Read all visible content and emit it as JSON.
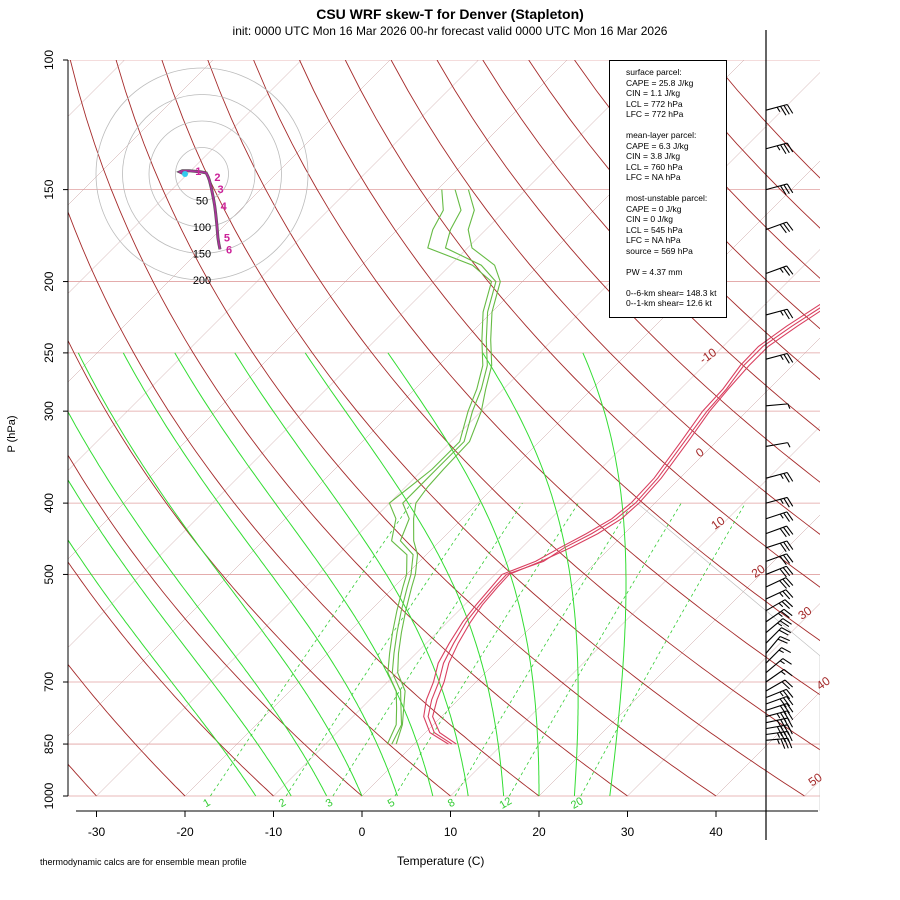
{
  "header": {
    "title": "CSU WRF skew-T for Denver (Stapleton)",
    "subtitle": "init: 0000 UTC Mon 16 Mar 2026    00-hr forecast valid 0000 UTC Mon 16 Mar 2026"
  },
  "axes": {
    "xlabel": "Temperature (C)",
    "ylabel": "P (hPa)",
    "footnote": "thermodynamic calcs are for ensemble mean profile"
  },
  "stats": {
    "surface": [
      "surface parcel:",
      "CAPE = 25.8 J/kg",
      "CIN = 1.1 J/kg",
      "LCL = 772 hPa",
      "LFC = 772 hPa"
    ],
    "mean_layer": [
      "mean-layer parcel:",
      "CAPE = 6.3 J/kg",
      "CIN = 3.8 J/kg",
      "LCL = 760 hPa",
      "LFC = NA hPa"
    ],
    "most_unstable": [
      "most-unstable parcel:",
      "CAPE = 0 J/kg",
      "CIN = 0 J/kg",
      "LCL = 545 hPa",
      "LFC = NA hPa",
      "source = 569 hPa"
    ],
    "pw": "PW =  4.37 mm",
    "shear": [
      "0--6-km shear= 148.3 kt",
      "0--1-km shear= 12.6 kt"
    ]
  },
  "colors": {
    "isotherm": "#a52a2a",
    "dry_adiabat": "#a52a2a",
    "moist_adiabat": "#33dd33",
    "mixing_ratio": "#33cc33",
    "isobar": "#e0a0a0",
    "temperature": "#d94060",
    "dewpoint": "#66bb44",
    "wind_barb": "#000000"
  },
  "chart_data": {
    "type": "line",
    "title": "CSU WRF skew-T for Denver (Stapleton)",
    "xlabel": "Temperature (C)",
    "ylabel": "P (hPa)",
    "x_ticks": [
      -30,
      -20,
      -10,
      0,
      10,
      20,
      30,
      40
    ],
    "y_ticks": [
      100,
      150,
      200,
      250,
      300,
      400,
      500,
      700,
      850,
      1000
    ],
    "y_scale": "log",
    "ylim": [
      1000,
      100
    ],
    "xlim": [
      -33,
      52
    ],
    "isotherm_labels": [
      {
        "text": "-10",
        "p": 255,
        "t": -10
      },
      {
        "text": "0",
        "p": 345,
        "t": 0
      },
      {
        "text": "10",
        "p": 430,
        "t": 10
      },
      {
        "text": "20",
        "p": 500,
        "t": 20
      },
      {
        "text": "30",
        "p": 570,
        "t": 30
      },
      {
        "text": "40",
        "p": 710,
        "t": 40
      },
      {
        "text": "50",
        "p": 960,
        "t": 50
      }
    ],
    "mixing_ratio_labels": [
      "1",
      "2",
      "3",
      "5",
      "8",
      "12",
      "20"
    ],
    "mixing_ratio_values": [
      1,
      2,
      3,
      5,
      8,
      12,
      20
    ],
    "series": [
      {
        "kind": "temperature",
        "members": [
          [
            [
              850,
              4.3
            ],
            [
              820,
              1.0
            ],
            [
              780,
              -1.5
            ],
            [
              740,
              -3.0
            ],
            [
              700,
              -4.2
            ],
            [
              660,
              -5.8
            ],
            [
              620,
              -6.9
            ],
            [
              580,
              -7.9
            ],
            [
              550,
              -8.3
            ],
            [
              520,
              -8.6
            ],
            [
              500,
              -8.7
            ],
            [
              480,
              -6.0
            ],
            [
              460,
              -5.2
            ],
            [
              440,
              -3.7
            ],
            [
              420,
              -2.6
            ],
            [
              400,
              -2.2
            ],
            [
              370,
              -2.5
            ],
            [
              330,
              -3.6
            ],
            [
              300,
              -4.5
            ],
            [
              280,
              -4.8
            ],
            [
              260,
              -5.5
            ],
            [
              245,
              -5.5
            ],
            [
              230,
              -4.5
            ],
            [
              200,
              -1.8
            ],
            [
              180,
              0.9
            ],
            [
              160,
              3.3
            ],
            [
              150,
              4.0
            ],
            [
              140,
              4.7
            ],
            [
              125,
              6.0
            ],
            [
              115,
              7.5
            ]
          ],
          [
            [
              850,
              4.8
            ],
            [
              820,
              1.6
            ],
            [
              780,
              -1.0
            ],
            [
              740,
              -2.4
            ],
            [
              700,
              -3.6
            ],
            [
              660,
              -5.2
            ],
            [
              620,
              -6.4
            ],
            [
              580,
              -7.4
            ],
            [
              550,
              -8.0
            ],
            [
              520,
              -8.3
            ],
            [
              500,
              -8.4
            ],
            [
              480,
              -6.3
            ],
            [
              460,
              -4.5
            ],
            [
              440,
              -3.0
            ],
            [
              420,
              -2.0
            ],
            [
              400,
              -1.8
            ],
            [
              370,
              -2.1
            ],
            [
              330,
              -3.2
            ],
            [
              300,
              -4.2
            ],
            [
              280,
              -4.6
            ],
            [
              260,
              -4.9
            ],
            [
              245,
              -4.9
            ],
            [
              230,
              -3.9
            ],
            [
              200,
              -1.3
            ],
            [
              180,
              1.4
            ],
            [
              160,
              3.8
            ],
            [
              150,
              4.4
            ],
            [
              140,
              5.1
            ],
            [
              125,
              6.3
            ],
            [
              115,
              7.7
            ]
          ],
          [
            [
              850,
              3.9
            ],
            [
              820,
              0.5
            ],
            [
              780,
              -2.0
            ],
            [
              740,
              -3.6
            ],
            [
              700,
              -4.8
            ],
            [
              660,
              -6.4
            ],
            [
              620,
              -7.4
            ],
            [
              580,
              -8.3
            ],
            [
              550,
              -8.7
            ],
            [
              520,
              -9.0
            ],
            [
              500,
              -9.2
            ],
            [
              480,
              -6.9
            ],
            [
              460,
              -5.7
            ],
            [
              440,
              -4.3
            ],
            [
              420,
              -3.1
            ],
            [
              400,
              -2.7
            ],
            [
              370,
              -2.9
            ],
            [
              330,
              -4.0
            ],
            [
              300,
              -5.0
            ],
            [
              280,
              -5.2
            ],
            [
              260,
              -5.9
            ],
            [
              245,
              -6.0
            ],
            [
              230,
              -5.1
            ],
            [
              200,
              -2.4
            ],
            [
              180,
              0.3
            ],
            [
              160,
              2.8
            ],
            [
              150,
              3.6
            ],
            [
              140,
              4.4
            ],
            [
              125,
              5.8
            ],
            [
              115,
              7.3
            ]
          ]
        ]
      },
      {
        "kind": "dewpoint",
        "members": [
          [
            [
              850,
              -2.5
            ],
            [
              800,
              -3.6
            ],
            [
              760,
              -5.5
            ],
            [
              720,
              -7.5
            ],
            [
              680,
              -10.5
            ],
            [
              640,
              -12.5
            ],
            [
              600,
              -14.5
            ],
            [
              560,
              -16.5
            ],
            [
              520,
              -18.5
            ],
            [
              500,
              -19.5
            ],
            [
              470,
              -21.5
            ],
            [
              450,
              -24.5
            ],
            [
              420,
              -26.0
            ],
            [
              400,
              -28.5
            ],
            [
              380,
              -28.5
            ],
            [
              360,
              -28.5
            ],
            [
              330,
              -28.5
            ],
            [
              300,
              -31.0
            ],
            [
              280,
              -32.5
            ],
            [
              260,
              -34.5
            ],
            [
              240,
              -37.5
            ],
            [
              220,
              -40.5
            ],
            [
              200,
              -43.0
            ],
            [
              190,
              -46.5
            ],
            [
              180,
              -52.5
            ],
            [
              170,
              -54.0
            ],
            [
              160,
              -55.0
            ],
            [
              150,
              -58.0
            ]
          ],
          [
            [
              850,
              -2.0
            ],
            [
              800,
              -3.5
            ],
            [
              760,
              -5.2
            ],
            [
              720,
              -7.0
            ],
            [
              680,
              -9.9
            ],
            [
              640,
              -12.0
            ],
            [
              600,
              -14.0
            ],
            [
              560,
              -16.0
            ],
            [
              520,
              -18.0
            ],
            [
              500,
              -19.0
            ],
            [
              470,
              -21.0
            ],
            [
              450,
              -23.0
            ],
            [
              420,
              -25.5
            ],
            [
              400,
              -27.0
            ],
            [
              380,
              -27.5
            ],
            [
              360,
              -27.7
            ],
            [
              330,
              -27.9
            ],
            [
              300,
              -30.0
            ],
            [
              280,
              -32.0
            ],
            [
              260,
              -34.0
            ],
            [
              240,
              -37.0
            ],
            [
              220,
              -40.0
            ],
            [
              200,
              -42.5
            ],
            [
              190,
              -45.0
            ],
            [
              180,
              -49.5
            ],
            [
              170,
              -52.0
            ],
            [
              160,
              -53.5
            ],
            [
              150,
              -56.5
            ]
          ],
          [
            [
              850,
              -3.0
            ],
            [
              800,
              -4.2
            ],
            [
              760,
              -6.0
            ],
            [
              720,
              -8.0
            ],
            [
              680,
              -11.0
            ],
            [
              640,
              -13.0
            ],
            [
              600,
              -15.0
            ],
            [
              560,
              -17.0
            ],
            [
              520,
              -19.0
            ],
            [
              500,
              -20.0
            ],
            [
              470,
              -22.2
            ],
            [
              450,
              -25.5
            ],
            [
              420,
              -27.5
            ],
            [
              400,
              -30.0
            ],
            [
              380,
              -29.5
            ],
            [
              360,
              -29.0
            ],
            [
              330,
              -29.0
            ],
            [
              300,
              -31.5
            ],
            [
              280,
              -33.0
            ],
            [
              260,
              -35.0
            ],
            [
              240,
              -38.0
            ],
            [
              220,
              -41.0
            ],
            [
              200,
              -43.5
            ],
            [
              190,
              -47.5
            ],
            [
              180,
              -54.5
            ],
            [
              170,
              -56.0
            ],
            [
              160,
              -57.0
            ],
            [
              150,
              -59.5
            ]
          ]
        ]
      }
    ],
    "wind_barbs": [
      {
        "p": 840,
        "dir": 265,
        "speed": 35
      },
      {
        "p": 825,
        "dir": 262,
        "speed": 35
      },
      {
        "p": 810,
        "dir": 260,
        "speed": 40
      },
      {
        "p": 795,
        "dir": 258,
        "speed": 40
      },
      {
        "p": 780,
        "dir": 255,
        "speed": 35
      },
      {
        "p": 765,
        "dir": 252,
        "speed": 30
      },
      {
        "p": 750,
        "dir": 250,
        "speed": 30
      },
      {
        "p": 735,
        "dir": 248,
        "speed": 25
      },
      {
        "p": 720,
        "dir": 240,
        "speed": 20
      },
      {
        "p": 700,
        "dir": 235,
        "speed": 15
      },
      {
        "p": 680,
        "dir": 230,
        "speed": 15
      },
      {
        "p": 660,
        "dir": 225,
        "speed": 15
      },
      {
        "p": 640,
        "dir": 220,
        "speed": 20
      },
      {
        "p": 620,
        "dir": 225,
        "speed": 20
      },
      {
        "p": 600,
        "dir": 230,
        "speed": 25
      },
      {
        "p": 580,
        "dir": 235,
        "speed": 25
      },
      {
        "p": 560,
        "dir": 240,
        "speed": 25
      },
      {
        "p": 540,
        "dir": 245,
        "speed": 25
      },
      {
        "p": 520,
        "dir": 245,
        "speed": 30
      },
      {
        "p": 500,
        "dir": 248,
        "speed": 30
      },
      {
        "p": 480,
        "dir": 250,
        "speed": 30
      },
      {
        "p": 460,
        "dir": 252,
        "speed": 30
      },
      {
        "p": 440,
        "dir": 250,
        "speed": 30
      },
      {
        "p": 420,
        "dir": 252,
        "speed": 25
      },
      {
        "p": 400,
        "dir": 255,
        "speed": 25
      },
      {
        "p": 370,
        "dir": 255,
        "speed": 25
      },
      {
        "p": 335,
        "dir": 260,
        "speed": 5
      },
      {
        "p": 295,
        "dir": 265,
        "speed": 5
      },
      {
        "p": 255,
        "dir": 255,
        "speed": 25
      },
      {
        "p": 222,
        "dir": 255,
        "speed": 25
      },
      {
        "p": 195,
        "dir": 250,
        "speed": 25
      },
      {
        "p": 170,
        "dir": 250,
        "speed": 30
      },
      {
        "p": 150,
        "dir": 255,
        "speed": 30
      },
      {
        "p": 132,
        "dir": 255,
        "speed": 35
      },
      {
        "p": 117,
        "dir": 255,
        "speed": 35
      }
    ],
    "hodograph": {
      "rings": [
        50,
        100,
        150,
        200
      ],
      "ring_labels": [
        "50",
        "100",
        "150",
        "200"
      ],
      "points": [
        [
          0,
          0
        ],
        [
          -6,
          2
        ],
        [
          -10,
          4
        ],
        [
          -5,
          6
        ],
        [
          8,
          6
        ],
        [
          30,
          4
        ],
        [
          40,
          2
        ],
        [
          44,
          -6
        ],
        [
          46,
          -12
        ],
        [
          50,
          -28
        ],
        [
          54,
          -48
        ],
        [
          56,
          -60
        ],
        [
          58,
          -75
        ],
        [
          60,
          -95
        ],
        [
          62,
          -120
        ],
        [
          64,
          -132
        ],
        [
          66,
          -142
        ]
      ],
      "height_labels": [
        {
          "text": "1",
          "u": 8,
          "v": 6
        },
        {
          "text": "2",
          "u": 44,
          "v": -6
        },
        {
          "text": "3",
          "u": 50,
          "v": -28
        },
        {
          "text": "4",
          "u": 56,
          "v": -60
        },
        {
          "text": "5",
          "u": 62,
          "v": -120
        },
        {
          "text": "6",
          "u": 66,
          "v": -142
        }
      ]
    }
  }
}
